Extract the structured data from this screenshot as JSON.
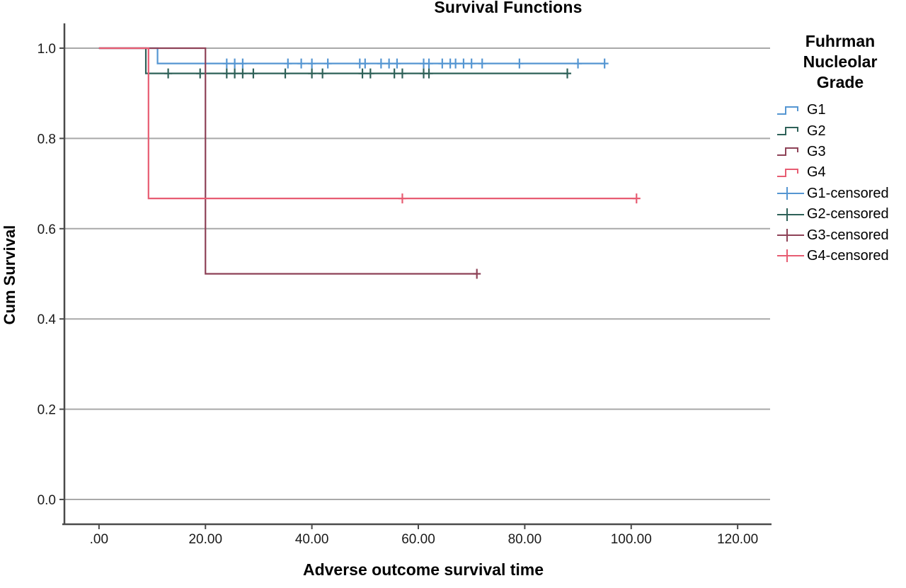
{
  "page": {
    "background": "#ffffff"
  },
  "chart_data": {
    "type": "line",
    "subtype": "kaplan-meier-step",
    "title": "Survival Functions",
    "xlabel": "Adverse outcome survival time",
    "ylabel": "Cum Survival",
    "xlim": [
      -6.5,
      126.1
    ],
    "ylim": [
      -0.0549,
      1.0549
    ],
    "xticks": [
      0,
      20,
      40,
      60,
      80,
      100,
      120
    ],
    "xtick_labels": [
      ".00",
      "20.00",
      "40.00",
      "60.00",
      "80.00",
      "100.00",
      "120.00"
    ],
    "yticks": [
      0.0,
      0.2,
      0.4,
      0.6,
      0.8,
      1.0
    ],
    "ytick_labels": [
      "0.0",
      "0.2",
      "0.4",
      "0.6",
      "0.8",
      "1.0"
    ],
    "grid": "horizontal",
    "legend_position": "right",
    "legend_title_lines": [
      "Fuhrman",
      "Nucleolar",
      "Grade"
    ],
    "series": [
      {
        "name": "G1",
        "color": "#5596d2",
        "points": [
          [
            0,
            1.0
          ],
          [
            11,
            1.0
          ],
          [
            11,
            0.966
          ],
          [
            95,
            0.966
          ]
        ],
        "censored": [
          24,
          25.5,
          27,
          35.5,
          38,
          40,
          43,
          49,
          50,
          53,
          54.5,
          56,
          61,
          62,
          64.5,
          66,
          67,
          68.5,
          70,
          72,
          79,
          90,
          95
        ]
      },
      {
        "name": "G2",
        "color": "#2e6158",
        "points": [
          [
            0,
            1.0
          ],
          [
            8.8,
            1.0
          ],
          [
            8.8,
            0.944
          ],
          [
            88,
            0.944
          ]
        ],
        "censored": [
          13,
          19,
          24,
          25.5,
          27,
          29,
          35,
          40,
          42,
          49.5,
          51,
          55.5,
          57,
          61,
          62,
          88
        ]
      },
      {
        "name": "G3",
        "color": "#8e4257",
        "points": [
          [
            0,
            1.0
          ],
          [
            20,
            1.0
          ],
          [
            20,
            0.5
          ],
          [
            71,
            0.5
          ]
        ],
        "censored": [
          71
        ]
      },
      {
        "name": "G4",
        "color": "#e75c72",
        "points": [
          [
            0,
            1.0
          ],
          [
            9.3,
            1.0
          ],
          [
            9.3,
            0.667
          ],
          [
            101,
            0.667
          ]
        ],
        "censored": [
          57,
          101
        ]
      }
    ],
    "legend_entries": [
      {
        "label": "G1",
        "type": "step",
        "color": "#5596d2"
      },
      {
        "label": "G2",
        "type": "step",
        "color": "#2e6158"
      },
      {
        "label": "G3",
        "type": "step",
        "color": "#8e4257"
      },
      {
        "label": "G4",
        "type": "step",
        "color": "#e75c72"
      },
      {
        "label": "G1-censored",
        "type": "censor",
        "color": "#5596d2"
      },
      {
        "label": "G2-censored",
        "type": "censor",
        "color": "#2e6158"
      },
      {
        "label": "G3-censored",
        "type": "censor",
        "color": "#8e4257"
      },
      {
        "label": "G4-censored",
        "type": "censor",
        "color": "#e75c72"
      }
    ],
    "style": {
      "axis_color": "#4a4a4a",
      "grid_color": "#a9a9a9",
      "text_color": "#1a1a1a",
      "curve_width": 2.2,
      "tick_font_size": 19
    }
  }
}
